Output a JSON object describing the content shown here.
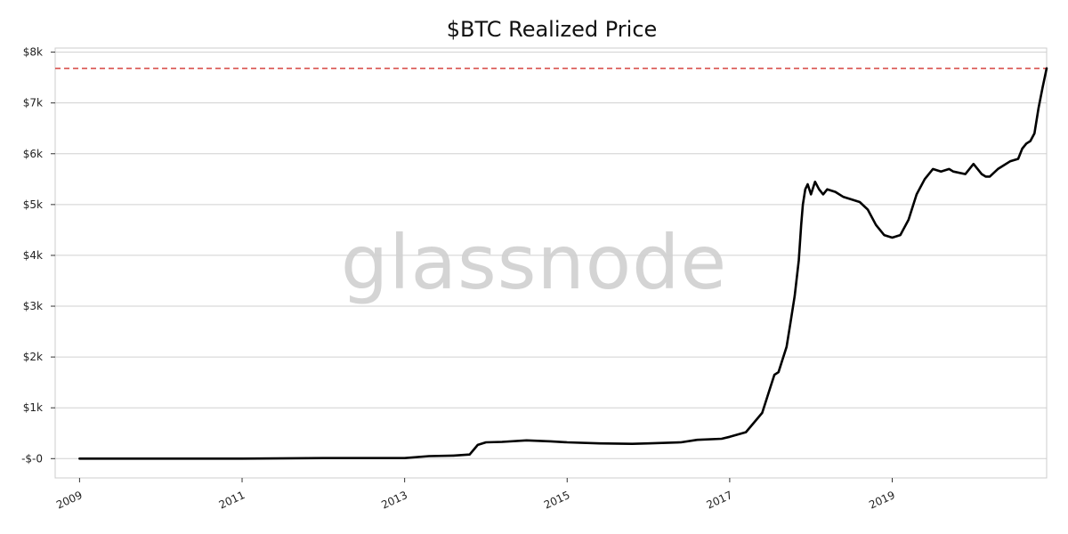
{
  "chart_data": {
    "type": "line",
    "title": "$BTC Realized Price",
    "xlabel": "",
    "ylabel": "",
    "watermark": "glassnode",
    "xlim": [
      2008.7,
      2020.9
    ],
    "ylim": [
      -380,
      8080
    ],
    "y_ticks": [
      {
        "value": 0,
        "label": "-$-0"
      },
      {
        "value": 1000,
        "label": "$1k"
      },
      {
        "value": 2000,
        "label": "$2k"
      },
      {
        "value": 3000,
        "label": "$3k"
      },
      {
        "value": 4000,
        "label": "$4k"
      },
      {
        "value": 5000,
        "label": "$5k"
      },
      {
        "value": 6000,
        "label": "$6k"
      },
      {
        "value": 7000,
        "label": "$7k"
      },
      {
        "value": 8000,
        "label": "$8k"
      }
    ],
    "x_ticks": [
      {
        "value": 2009,
        "label": "2009"
      },
      {
        "value": 2011,
        "label": "2011"
      },
      {
        "value": 2013,
        "label": "2013"
      },
      {
        "value": 2015,
        "label": "2015"
      },
      {
        "value": 2017,
        "label": "2017"
      },
      {
        "value": 2019,
        "label": "2019"
      }
    ],
    "grid": "horizontal",
    "reference_line": {
      "value": 7680,
      "color": "#d9534f",
      "style": "dashed"
    },
    "colors": {
      "line": "#000000",
      "grid": "#d0d0d0",
      "axes": "#cccccc"
    },
    "series": [
      {
        "color": "#000000",
        "x": [
          2009.0,
          2010.0,
          2011.0,
          2012.0,
          2012.5,
          2013.0,
          2013.3,
          2013.6,
          2013.8,
          2013.9,
          2014.0,
          2014.2,
          2014.5,
          2014.8,
          2015.0,
          2015.4,
          2015.8,
          2016.0,
          2016.4,
          2016.6,
          2016.9,
          2017.0,
          2017.2,
          2017.4,
          2017.5,
          2017.55,
          2017.6,
          2017.7,
          2017.75,
          2017.8,
          2017.85,
          2017.88,
          2017.9,
          2017.93,
          2017.96,
          2018.0,
          2018.05,
          2018.1,
          2018.15,
          2018.2,
          2018.3,
          2018.4,
          2018.5,
          2018.6,
          2018.7,
          2018.8,
          2018.9,
          2019.0,
          2019.1,
          2019.2,
          2019.3,
          2019.4,
          2019.5,
          2019.6,
          2019.7,
          2019.75,
          2019.9,
          2020.0,
          2020.1,
          2020.15,
          2020.2,
          2020.3,
          2020.35,
          2020.45,
          2020.55,
          2020.6,
          2020.65,
          2020.7,
          2020.75,
          2020.8,
          2020.85,
          2020.9
        ],
        "values": [
          0,
          0,
          0,
          10,
          10,
          10,
          50,
          60,
          80,
          270,
          320,
          330,
          360,
          340,
          320,
          300,
          290,
          300,
          320,
          370,
          390,
          430,
          520,
          900,
          1400,
          1650,
          1700,
          2200,
          2700,
          3200,
          3900,
          4600,
          5000,
          5300,
          5400,
          5200,
          5450,
          5300,
          5200,
          5300,
          5250,
          5150,
          5100,
          5050,
          4900,
          4600,
          4400,
          4350,
          4400,
          4700,
          5200,
          5500,
          5700,
          5650,
          5700,
          5650,
          5600,
          5800,
          5600,
          5550,
          5550,
          5700,
          5750,
          5850,
          5900,
          6100,
          6200,
          6250,
          6400,
          6900,
          7300,
          7680
        ]
      }
    ]
  }
}
